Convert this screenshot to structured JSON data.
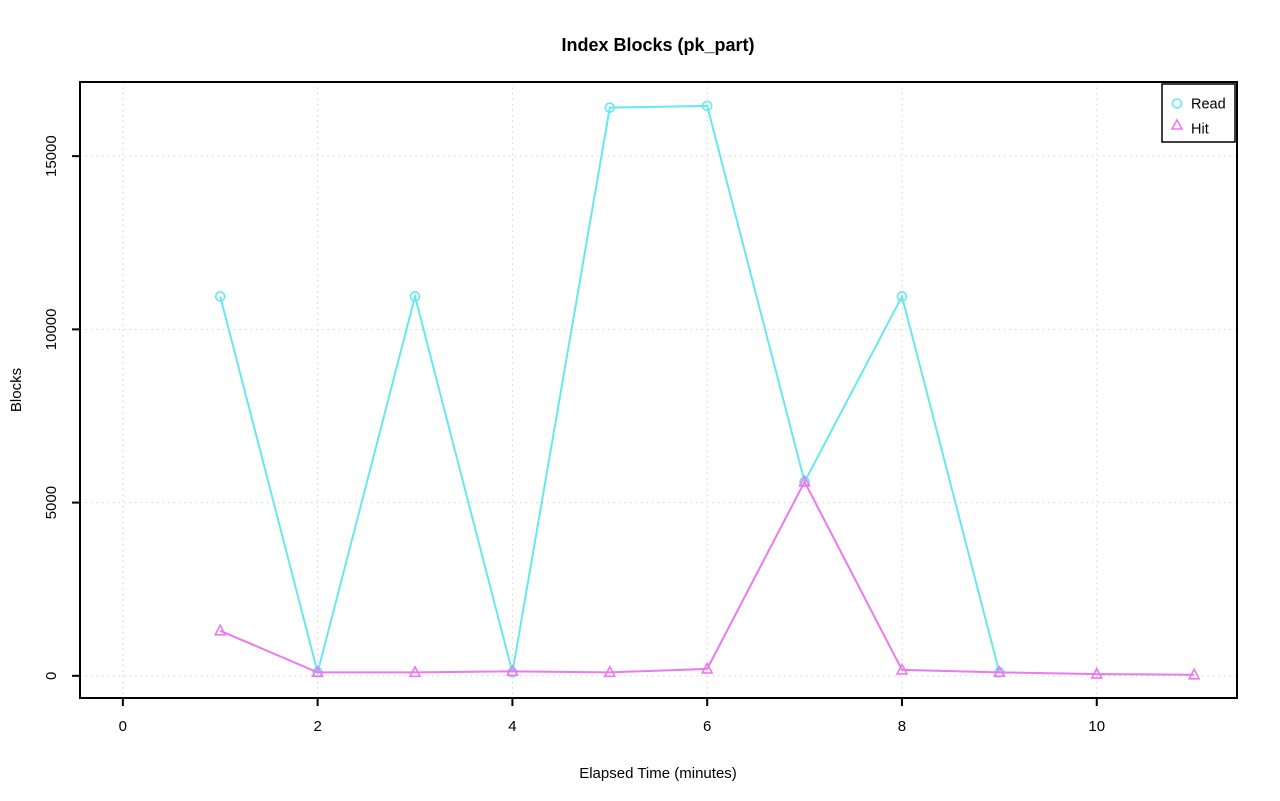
{
  "chart_data": {
    "type": "line",
    "title": "Index Blocks (pk_part)",
    "xlabel": "Elapsed Time (minutes)",
    "ylabel": "Blocks",
    "x_ticks": [
      0,
      2,
      4,
      6,
      8,
      10
    ],
    "y_ticks": [
      0,
      5000,
      10000,
      15000
    ],
    "xlim": [
      -0.44,
      11.44
    ],
    "ylim": [
      -640,
      17140
    ],
    "grid": true,
    "grid_style": "dotted",
    "grid_color": "#d3d3d3",
    "axis_color": "#000000",
    "background": "#ffffff",
    "legend_position": "topright",
    "series": [
      {
        "name": "Read",
        "marker": "circle",
        "color": "#66e9ee",
        "x": [
          1,
          2,
          3,
          4,
          5,
          6,
          7,
          8,
          9
        ],
        "values": [
          10950,
          100,
          10950,
          100,
          16400,
          16450,
          5600,
          10950,
          100
        ]
      },
      {
        "name": "Hit",
        "marker": "triangle",
        "color": "#ee78ee",
        "x": [
          1,
          2,
          3,
          4,
          5,
          6,
          7,
          8,
          9,
          10,
          11
        ],
        "values": [
          1300,
          100,
          100,
          130,
          100,
          200,
          5600,
          170,
          100,
          50,
          30
        ]
      }
    ]
  }
}
